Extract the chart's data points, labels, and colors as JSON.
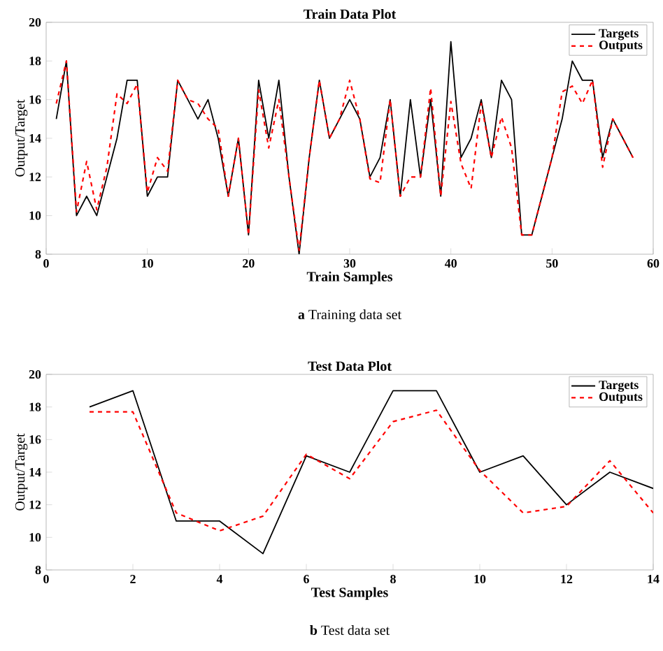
{
  "chart_data": [
    {
      "type": "line",
      "title": "Train Data Plot",
      "xlabel": "Train Samples",
      "ylabel": "Output/Target",
      "xlim": [
        0,
        60
      ],
      "ylim": [
        8,
        20
      ],
      "xticks": [
        0,
        10,
        20,
        30,
        40,
        50,
        60
      ],
      "yticks": [
        8,
        10,
        12,
        14,
        16,
        18,
        20
      ],
      "legend": "top right",
      "annotations": [
        "**a** Training data set"
      ],
      "x": [
        1,
        2,
        3,
        4,
        5,
        6,
        7,
        8,
        9,
        10,
        11,
        12,
        13,
        14,
        15,
        16,
        17,
        18,
        19,
        20,
        21,
        22,
        23,
        24,
        25,
        26,
        27,
        28,
        29,
        30,
        31,
        32,
        33,
        34,
        35,
        36,
        37,
        38,
        39,
        40,
        41,
        42,
        43,
        44,
        45,
        46,
        47,
        48,
        49,
        50,
        51,
        52,
        53,
        54,
        55,
        56,
        57,
        58
      ],
      "series": [
        {
          "name": "Targets",
          "color": "#000000",
          "line_style": "solid",
          "values": [
            15,
            18,
            10,
            11,
            10,
            12,
            14,
            17,
            17,
            11,
            12,
            12,
            17,
            16,
            15,
            16,
            14,
            11,
            14,
            9,
            17,
            14,
            17,
            12,
            8,
            13,
            17,
            14,
            15,
            16,
            15,
            12,
            13,
            16,
            11,
            16,
            12,
            16,
            11,
            19,
            13,
            14,
            16,
            13,
            17,
            16,
            9,
            9,
            11,
            13,
            15,
            18,
            17,
            17,
            13,
            15,
            14,
            13
          ]
        },
        {
          "name": "Outputs",
          "color": "#ff0000",
          "line_style": "dashed",
          "values": [
            15.8,
            18,
            10.2,
            12.8,
            10.3,
            12.5,
            16.3,
            15.8,
            16.8,
            11.2,
            13,
            12.3,
            17,
            16,
            15.8,
            15,
            14.5,
            11,
            14,
            9,
            16.5,
            13.5,
            16,
            12,
            8.2,
            13,
            17,
            14,
            15,
            17,
            15,
            11.9,
            11.7,
            16,
            11,
            12,
            12,
            16.6,
            11,
            15.9,
            12.7,
            11.4,
            15.8,
            13,
            15.1,
            13.5,
            9,
            9,
            11,
            13,
            16.4,
            16.7,
            15.8,
            17,
            12.5,
            15,
            14,
            13
          ]
        }
      ]
    },
    {
      "type": "line",
      "title": "Test Data Plot",
      "xlabel": "Test Samples",
      "ylabel": "Output/Target",
      "xlim": [
        0,
        14
      ],
      "ylim": [
        8,
        20
      ],
      "xticks": [
        0,
        2,
        4,
        6,
        8,
        10,
        12,
        14
      ],
      "yticks": [
        8,
        10,
        12,
        14,
        16,
        18,
        20
      ],
      "legend": "top right",
      "annotations": [
        "**b** Test data set"
      ],
      "x": [
        1,
        2,
        3,
        4,
        5,
        6,
        7,
        8,
        9,
        10,
        11,
        12,
        13,
        14
      ],
      "series": [
        {
          "name": "Targets",
          "color": "#000000",
          "line_style": "solid",
          "values": [
            18,
            19,
            11,
            11,
            9,
            15,
            14,
            19,
            19,
            14,
            15,
            12,
            14,
            13
          ]
        },
        {
          "name": "Outputs",
          "color": "#ff0000",
          "line_style": "dashed",
          "values": [
            17.7,
            17.7,
            11.5,
            10.4,
            11.3,
            15.1,
            13.6,
            17.1,
            17.8,
            14.1,
            11.5,
            11.9,
            14.7,
            11.5
          ]
        }
      ]
    }
  ]
}
